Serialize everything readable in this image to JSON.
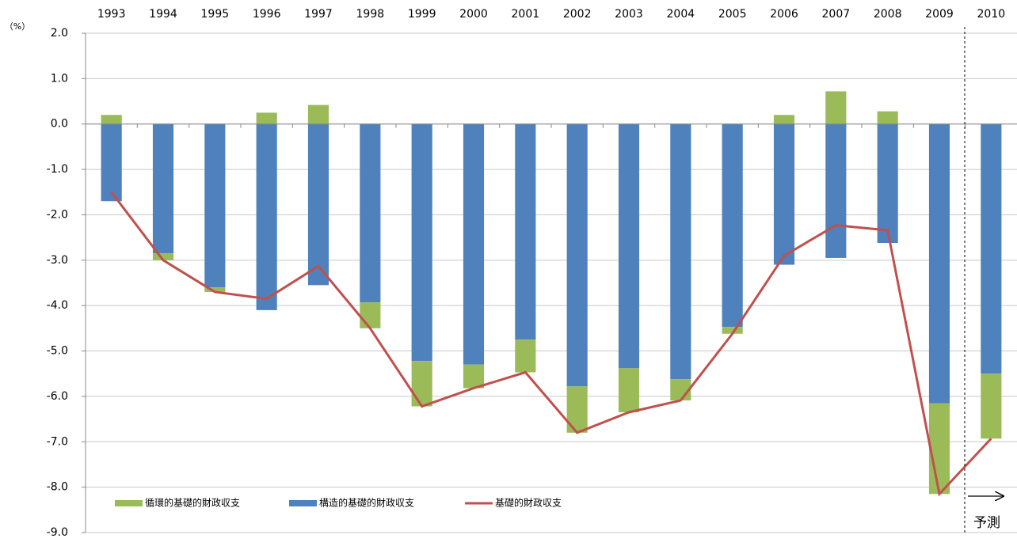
{
  "chart_data": {
    "type": "bar",
    "y_label": "（%）",
    "annotation": "予測",
    "categories": [
      "1993",
      "1994",
      "1995",
      "1996",
      "1997",
      "1998",
      "1999",
      "2000",
      "2001",
      "2002",
      "2003",
      "2004",
      "2005",
      "2006",
      "2007",
      "2008",
      "2009",
      "2010"
    ],
    "series": [
      {
        "name": "循環的基礎的財政収支",
        "type": "bar",
        "color": "#9bbb59",
        "values": [
          0.2,
          -0.15,
          -0.1,
          0.25,
          0.42,
          -0.57,
          -1.0,
          -0.52,
          -0.72,
          -1.02,
          -0.97,
          -0.47,
          -0.15,
          0.2,
          0.72,
          0.28,
          -2.0,
          -1.43
        ]
      },
      {
        "name": "構造的基礎的財政収支",
        "type": "bar",
        "color": "#4f81bd",
        "values": [
          -1.7,
          -2.85,
          -3.6,
          -4.1,
          -3.55,
          -3.93,
          -5.22,
          -5.3,
          -4.75,
          -5.78,
          -5.38,
          -5.62,
          -4.47,
          -3.1,
          -2.95,
          -2.62,
          -6.15,
          -5.5
        ]
      },
      {
        "name": "基礎的財政収支",
        "type": "line",
        "color": "#c0504d",
        "values": [
          -1.5,
          -3.0,
          -3.7,
          -3.85,
          -3.13,
          -4.5,
          -6.22,
          -5.82,
          -5.47,
          -6.8,
          -6.35,
          -6.09,
          -4.62,
          -2.9,
          -2.23,
          -2.34,
          -8.15,
          -6.93
        ]
      }
    ],
    "ylim": [
      -9,
      2
    ],
    "yticks": [
      {
        "value": 2,
        "label": "2.0"
      },
      {
        "value": 1,
        "label": "1.0"
      },
      {
        "value": 0,
        "label": "0.0"
      },
      {
        "value": -1,
        "label": "-1.0"
      },
      {
        "value": -2,
        "label": "-2.0"
      },
      {
        "value": -3,
        "label": "-3.0"
      },
      {
        "value": -4,
        "label": "-4.0"
      },
      {
        "value": -5,
        "label": "-5.0"
      },
      {
        "value": -6,
        "label": "-6.0"
      },
      {
        "value": -7,
        "label": "-7.0"
      },
      {
        "value": -8,
        "label": "-8.0"
      },
      {
        "value": -9,
        "label": "-9.0"
      }
    ],
    "grid": true
  }
}
